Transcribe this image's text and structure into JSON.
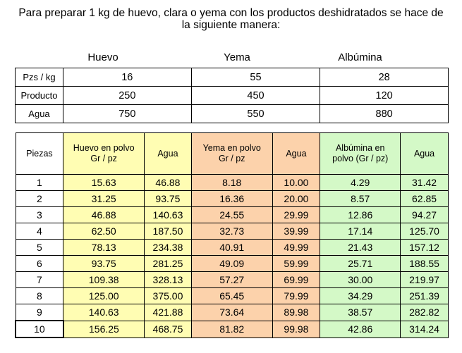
{
  "title": {
    "line1": "Para preparar 1 kg de huevo, clara o yema con los productos deshidratados se hace de",
    "line2": "la siguiente manera:"
  },
  "top_table": {
    "columns": [
      "Huevo",
      "Yema",
      "Albúmina"
    ],
    "rows": [
      {
        "label": "Pzs / kg",
        "values": [
          "16",
          "55",
          "28"
        ]
      },
      {
        "label": "Producto",
        "values": [
          "250",
          "450",
          "120"
        ]
      },
      {
        "label": "Agua",
        "values": [
          "750",
          "550",
          "880"
        ]
      }
    ]
  },
  "main_table": {
    "headers": [
      "Piezas",
      "Huevo en polvo Gr / pz",
      "Agua",
      "Yema en polvo Gr / pz",
      "Agua",
      "Albúmina en polvo (Gr / pz)",
      "Agua"
    ],
    "rows": [
      [
        "1",
        "15.63",
        "46.88",
        "8.18",
        "10.00",
        "4.29",
        "31.42"
      ],
      [
        "2",
        "31.25",
        "93.75",
        "16.36",
        "20.00",
        "8.57",
        "62.85"
      ],
      [
        "3",
        "46.88",
        "140.63",
        "24.55",
        "29.99",
        "12.86",
        "94.27"
      ],
      [
        "4",
        "62.50",
        "187.50",
        "32.73",
        "39.99",
        "17.14",
        "125.70"
      ],
      [
        "5",
        "78.13",
        "234.38",
        "40.91",
        "49.99",
        "21.43",
        "157.12"
      ],
      [
        "6",
        "93.75",
        "281.25",
        "49.09",
        "59.99",
        "25.71",
        "188.55"
      ],
      [
        "7",
        "109.38",
        "328.13",
        "57.27",
        "69.99",
        "30.00",
        "219.97"
      ],
      [
        "8",
        "125.00",
        "375.00",
        "65.45",
        "79.99",
        "34.29",
        "251.39"
      ],
      [
        "9",
        "140.63",
        "421.88",
        "73.64",
        "89.98",
        "38.57",
        "282.82"
      ],
      [
        "10",
        "156.25",
        "468.75",
        "81.82",
        "99.98",
        "42.86",
        "314.24"
      ]
    ],
    "colors": {
      "huevo": "#fffdb3",
      "yema": "#fcd2ab",
      "albumina": "#d4f9c7"
    }
  }
}
